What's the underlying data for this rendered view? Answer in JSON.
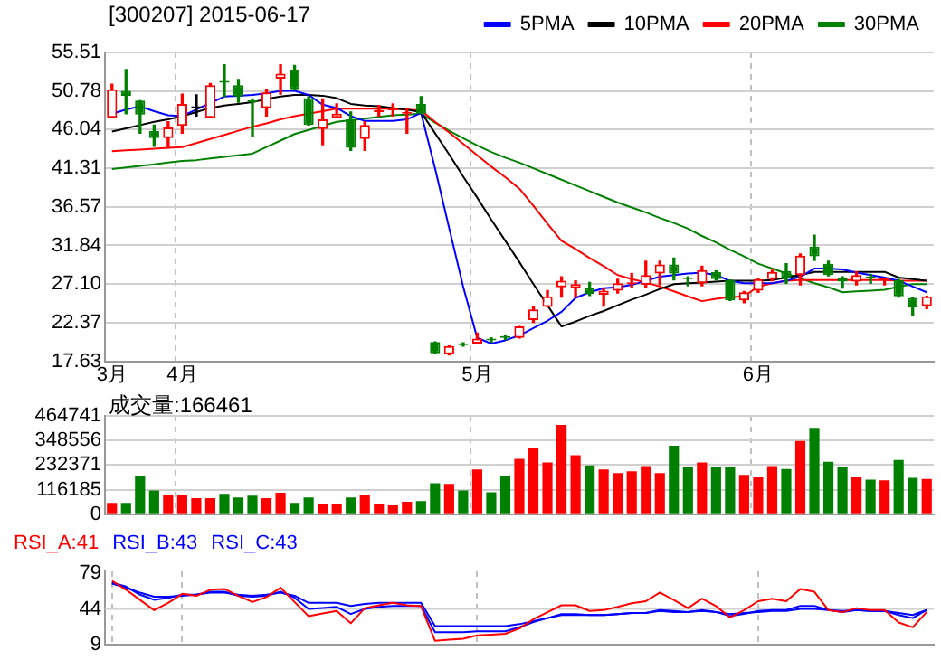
{
  "chart_data": [
    {
      "type": "candlestick",
      "title": "[300207] 2015-06-17",
      "legend": "top right",
      "grid": true,
      "categories": [
        "3月",
        null,
        null,
        null,
        null,
        "4月",
        null,
        null,
        null,
        null,
        null,
        null,
        null,
        null,
        null,
        null,
        null,
        null,
        null,
        null,
        null,
        null,
        null,
        null,
        null,
        null,
        "5月",
        null,
        null,
        null,
        null,
        null,
        null,
        null,
        null,
        null,
        null,
        null,
        null,
        null,
        null,
        null,
        null,
        null,
        null,
        null,
        "6月",
        null,
        null,
        null,
        null,
        null,
        null,
        null,
        null,
        null,
        null,
        null,
        null
      ],
      "ohlc": [
        [
          47.5,
          51.6,
          47.5,
          51.0
        ],
        [
          50.8,
          53.4,
          48.0,
          50.2
        ],
        [
          49.6,
          49.6,
          45.6,
          47.9
        ],
        [
          45.9,
          46.6,
          44.0,
          45.0
        ],
        [
          45.0,
          47.0,
          43.8,
          46.3
        ],
        [
          46.5,
          50.4,
          45.6,
          49.2
        ],
        [
          48.7,
          50.3,
          47.7,
          48.7
        ],
        [
          47.5,
          51.7,
          47.5,
          51.5
        ],
        [
          51.9,
          54.0,
          50.1,
          51.8
        ],
        [
          51.5,
          52.2,
          49.4,
          50.1
        ],
        [
          49.5,
          49.8,
          45.2,
          49.4
        ],
        [
          48.7,
          51.0,
          47.7,
          50.6
        ],
        [
          52.3,
          54.0,
          50.4,
          52.9
        ],
        [
          53.4,
          53.9,
          51.0,
          51.0
        ],
        [
          49.9,
          50.1,
          46.6,
          46.6
        ],
        [
          46.1,
          49.8,
          44.2,
          47.3
        ],
        [
          47.5,
          49.2,
          47.5,
          48.0
        ],
        [
          47.3,
          48.2,
          43.5,
          43.8
        ],
        [
          44.9,
          47.0,
          43.5,
          46.6
        ],
        [
          48.2,
          49.0,
          47.7,
          48.3
        ],
        [
          48.4,
          49.2,
          47.7,
          48.5
        ],
        [
          48.0,
          48.6,
          45.6,
          48.1
        ],
        [
          49.2,
          50.1,
          48.0,
          48.0
        ],
        [
          20.0,
          20.0,
          18.6,
          18.6
        ],
        [
          18.5,
          19.5,
          18.4,
          19.5
        ],
        [
          19.7,
          19.9,
          19.5,
          19.6
        ],
        [
          19.8,
          21.1,
          19.8,
          20.4
        ],
        [
          20.3,
          20.5,
          20.0,
          20.2
        ],
        [
          20.6,
          20.8,
          20.3,
          20.5
        ],
        [
          20.5,
          21.9,
          20.5,
          21.9
        ],
        [
          22.7,
          24.4,
          22.4,
          24.0
        ],
        [
          24.3,
          26.3,
          24.3,
          25.6
        ],
        [
          26.7,
          28.0,
          25.5,
          27.5
        ],
        [
          26.6,
          27.5,
          25.5,
          27.1
        ],
        [
          26.6,
          27.3,
          25.7,
          25.9
        ],
        [
          25.8,
          26.5,
          24.4,
          26.3
        ],
        [
          26.3,
          27.7,
          26.0,
          27.2
        ],
        [
          27.1,
          28.4,
          26.7,
          27.2
        ],
        [
          27.0,
          29.9,
          26.7,
          28.2
        ],
        [
          28.4,
          29.9,
          27.0,
          29.5
        ],
        [
          29.5,
          30.3,
          27.6,
          28.4
        ],
        [
          27.8,
          28.0,
          26.9,
          27.7
        ],
        [
          27.2,
          29.3,
          26.9,
          28.8
        ],
        [
          28.6,
          28.7,
          27.6,
          27.7
        ],
        [
          27.6,
          27.6,
          25.1,
          25.1
        ],
        [
          25.1,
          26.2,
          24.8,
          26.1
        ],
        [
          26.3,
          27.8,
          26.1,
          27.7
        ],
        [
          27.7,
          28.8,
          27.5,
          28.6
        ],
        [
          28.7,
          29.6,
          27.2,
          27.9
        ],
        [
          28.2,
          30.8,
          27.0,
          30.6
        ],
        [
          31.7,
          33.1,
          30.0,
          30.5
        ],
        [
          29.6,
          29.9,
          28.1,
          28.2
        ],
        [
          27.8,
          28.0,
          26.6,
          27.4
        ],
        [
          27.4,
          28.6,
          27.0,
          28.2
        ],
        [
          27.9,
          28.3,
          27.2,
          27.8
        ],
        [
          27.6,
          27.8,
          27.0,
          27.7
        ],
        [
          27.6,
          27.7,
          25.5,
          25.6
        ],
        [
          25.4,
          25.4,
          23.3,
          24.2
        ],
        [
          24.4,
          25.6,
          24.1,
          25.6
        ]
      ],
      "colors": [
        "#ff0000",
        "#008000",
        "#008000",
        "#008000",
        "#ff0000",
        "#ff0000",
        "#000000",
        "#ff0000",
        "#008000",
        "#008000",
        "#008000",
        "#ff0000",
        "#ff0000",
        "#008000",
        "#008000",
        "#ff0000",
        "#ff0000",
        "#008000",
        "#ff0000",
        "#ff0000",
        "#ff0000",
        "#ff0000",
        "#008000",
        "#008000",
        "#ff0000",
        "#008000",
        "#ff0000",
        "#008000",
        "#008000",
        "#ff0000",
        "#ff0000",
        "#ff0000",
        "#ff0000",
        "#ff0000",
        "#008000",
        "#ff0000",
        "#ff0000",
        "#ff0000",
        "#ff0000",
        "#ff0000",
        "#008000",
        "#008000",
        "#ff0000",
        "#008000",
        "#008000",
        "#ff0000",
        "#ff0000",
        "#ff0000",
        "#008000",
        "#ff0000",
        "#008000",
        "#008000",
        "#008000",
        "#ff0000",
        "#008000",
        "#ff0000",
        "#008000",
        "#008000",
        "#ff0000"
      ],
      "series": [
        {
          "type": "line",
          "name": "5PMA",
          "color": "#0000ff",
          "values": [
            48.0,
            48.5,
            48.9,
            48.3,
            47.8,
            47.7,
            48.5,
            49.3,
            50.1,
            50.2,
            50.3,
            50.5,
            50.8,
            50.8,
            50.3,
            49.1,
            48.7,
            47.7,
            47.1,
            47.1,
            47.1,
            47.3,
            48.1,
            41.3,
            34.0,
            26.8,
            20.5,
            19.8,
            20.2,
            20.8,
            21.7,
            22.6,
            23.7,
            25.4,
            26.1,
            26.6,
            26.7,
            27.0,
            27.5,
            28.0,
            28.2,
            28.4,
            28.5,
            28.2,
            27.5,
            27.2,
            27.2,
            27.2,
            27.5,
            28.0,
            29.0,
            29.0,
            28.9,
            28.5,
            28.2,
            27.9,
            27.5,
            26.8,
            26.1
          ]
        },
        {
          "type": "line",
          "name": "10PMA",
          "color": "#000000",
          "values": [
            45.8,
            46.2,
            46.6,
            47.0,
            47.3,
            47.7,
            48.2,
            48.7,
            49.0,
            49.2,
            49.4,
            49.8,
            50.1,
            50.3,
            50.3,
            50.2,
            49.9,
            49.2,
            49.0,
            48.9,
            48.7,
            48.5,
            48.2,
            45.6,
            43.0,
            40.3,
            37.7,
            35.0,
            32.4,
            29.8,
            27.1,
            24.5,
            21.9,
            22.5,
            23.2,
            23.8,
            24.5,
            25.2,
            25.8,
            26.5,
            27.1,
            27.2,
            27.3,
            27.4,
            27.5,
            27.5,
            27.5,
            27.6,
            27.9,
            28.2,
            28.6,
            28.6,
            28.6,
            28.6,
            28.6,
            28.6,
            27.9,
            27.7,
            27.5
          ]
        },
        {
          "type": "line",
          "name": "20PMA",
          "color": "#ff0000",
          "values": [
            43.4,
            43.5,
            43.6,
            43.7,
            43.8,
            43.9,
            44.4,
            44.9,
            45.4,
            45.9,
            46.4,
            46.8,
            47.3,
            47.7,
            48.0,
            48.3,
            48.6,
            48.6,
            48.6,
            48.6,
            48.6,
            48.5,
            48.4,
            47.0,
            45.7,
            44.3,
            42.9,
            41.5,
            40.2,
            38.8,
            36.7,
            34.5,
            32.4,
            31.4,
            30.3,
            29.3,
            28.2,
            27.7,
            27.3,
            26.8,
            26.2,
            25.6,
            25.0,
            25.3,
            25.5,
            25.6,
            26.8,
            27.2,
            27.5,
            27.6,
            27.6,
            27.6,
            27.6,
            27.6,
            27.6,
            27.6,
            27.5,
            27.5,
            27.5
          ]
        },
        {
          "type": "line",
          "name": "30PMA",
          "color": "#008000",
          "values": [
            41.2,
            41.4,
            41.6,
            41.8,
            42.0,
            42.2,
            42.3,
            42.5,
            42.7,
            42.9,
            43.1,
            43.9,
            44.7,
            45.5,
            46.0,
            46.5,
            47.0,
            47.2,
            47.4,
            47.6,
            47.8,
            47.9,
            48.0,
            46.9,
            45.9,
            45.0,
            44.1,
            43.3,
            42.6,
            42.0,
            41.3,
            40.6,
            39.9,
            39.2,
            38.5,
            37.8,
            37.1,
            36.5,
            35.9,
            35.2,
            34.6,
            33.9,
            33.0,
            32.2,
            31.3,
            30.5,
            29.6,
            29.0,
            28.4,
            27.8,
            27.2,
            26.7,
            26.1,
            26.2,
            26.3,
            26.4,
            26.8,
            27.1,
            27.1
          ]
        }
      ],
      "ylim": [
        17.63,
        55.51
      ],
      "yticks": [
        17.63,
        22.37,
        {
          "value": 27.1,
          "label": "27.10"
        },
        31.84,
        36.57,
        41.31,
        46.04,
        50.78,
        55.51
      ]
    },
    {
      "type": "bar",
      "title": "成交量:166461",
      "grid": true,
      "tick_labels": "y",
      "categories": [
        null,
        null,
        null,
        null,
        null,
        null,
        null,
        null,
        null,
        null,
        null,
        null,
        null,
        null,
        null,
        null,
        null,
        null,
        null,
        null,
        null,
        null,
        null,
        null,
        null,
        null,
        null,
        null,
        null,
        null,
        null,
        null,
        null,
        null,
        null,
        null,
        null,
        null,
        null,
        null,
        null,
        null,
        null,
        null,
        null,
        null,
        null,
        null,
        null,
        null,
        null,
        null,
        null,
        null,
        null,
        null,
        null,
        null,
        null
      ],
      "values": [
        53500,
        53500,
        180300,
        112700,
        93000,
        93000,
        76000,
        76000,
        95800,
        78900,
        87300,
        76000,
        101400,
        53500,
        78900,
        50700,
        50700,
        78900,
        93000,
        50700,
        42300,
        59200,
        62000,
        146500,
        143700,
        112700,
        211300,
        104200,
        180300,
        262000,
        312700,
        245100,
        422500,
        278900,
        231000,
        211300,
        194400,
        202800,
        228200,
        194400,
        323900,
        222500,
        245100,
        222500,
        222500,
        185900,
        174600,
        228200,
        214100,
        346500,
        408500,
        247900,
        222500,
        174600,
        163400,
        160600,
        256300,
        171800,
        166461
      ],
      "colors": [
        "#ff0000",
        "#008000",
        "#008000",
        "#008000",
        "#ff0000",
        "#ff0000",
        "#ff0000",
        "#ff0000",
        "#008000",
        "#008000",
        "#008000",
        "#ff0000",
        "#ff0000",
        "#008000",
        "#008000",
        "#ff0000",
        "#ff0000",
        "#008000",
        "#ff0000",
        "#ff0000",
        "#ff0000",
        "#ff0000",
        "#008000",
        "#008000",
        "#ff0000",
        "#008000",
        "#ff0000",
        "#008000",
        "#008000",
        "#ff0000",
        "#ff0000",
        "#ff0000",
        "#ff0000",
        "#ff0000",
        "#008000",
        "#ff0000",
        "#ff0000",
        "#ff0000",
        "#ff0000",
        "#ff0000",
        "#008000",
        "#008000",
        "#ff0000",
        "#008000",
        "#008000",
        "#ff0000",
        "#ff0000",
        "#ff0000",
        "#008000",
        "#ff0000",
        "#008000",
        "#008000",
        "#008000",
        "#ff0000",
        "#008000",
        "#ff0000",
        "#008000",
        "#008000",
        "#ff0000"
      ],
      "ylim": [
        0,
        464741
      ],
      "yticks": [
        0,
        116185,
        232371,
        348556,
        464741
      ]
    },
    {
      "type": "line",
      "legend": "top left",
      "grid": "x",
      "tick_labels": "y",
      "ref_lines": [
        {
          "axis": "y",
          "value": 44,
          "color": "#d0d0d0"
        }
      ],
      "categories": [
        null,
        null,
        null,
        null,
        null,
        null,
        null,
        null,
        null,
        null,
        null,
        null,
        null,
        null,
        null,
        null,
        null,
        null,
        null,
        null,
        null,
        null,
        null,
        null,
        null,
        null,
        null,
        null,
        null,
        null,
        null,
        null,
        null,
        null,
        null,
        null,
        null,
        null,
        null,
        null,
        null,
        null,
        null,
        null,
        null,
        null,
        null,
        null,
        null,
        null,
        null,
        null,
        null,
        null,
        null,
        null,
        null,
        null,
        null
      ],
      "series": [
        {
          "name": "RSI_A:41",
          "color": "#ff0000",
          "values": [
            71.8,
            62.9,
            52.8,
            42.8,
            50.0,
            58.9,
            56.9,
            62.9,
            63.7,
            56.9,
            50.8,
            55.7,
            64.9,
            50.8,
            36.8,
            39.6,
            42.0,
            29.9,
            44.8,
            47.6,
            50.0,
            47.6,
            46.8,
            12.6,
            13.8,
            14.6,
            17.9,
            18.7,
            19.5,
            24.7,
            33.9,
            40.8,
            47.6,
            47.6,
            42.0,
            42.8,
            46.0,
            49.6,
            51.6,
            60.1,
            52.8,
            44.8,
            54.1,
            46.8,
            35.6,
            42.8,
            51.6,
            54.1,
            51.6,
            63.7,
            60.9,
            42.8,
            40.8,
            44.8,
            42.8,
            42.8,
            30.7,
            25.9,
            41
          ]
        },
        {
          "name": "RSI_B:43",
          "color": "#0000ff",
          "values": [
            70,
            66,
            58,
            53,
            55,
            58,
            58,
            61,
            61,
            57,
            56,
            57,
            61,
            55,
            44,
            45,
            46,
            39,
            44,
            46,
            47,
            47,
            47,
            21,
            21,
            21,
            22,
            22,
            22,
            26,
            31,
            35,
            39,
            39,
            38,
            38,
            39,
            40,
            40,
            43,
            42,
            41,
            43,
            41,
            37,
            39,
            42,
            43,
            43,
            47,
            47,
            43,
            41,
            43,
            42,
            42,
            38,
            35,
            43
          ]
        },
        {
          "name": "RSI_C:43",
          "color": "#0000ff",
          "values": [
            69,
            65,
            60,
            56,
            56,
            57,
            58,
            60,
            60,
            58,
            57,
            58,
            60,
            57,
            50,
            50,
            50,
            47,
            49,
            50,
            50,
            50,
            50,
            27,
            27,
            27,
            27,
            27,
            27,
            29,
            32,
            35,
            38,
            38,
            38,
            38,
            39,
            40,
            40,
            42,
            41,
            41,
            42,
            41,
            39,
            40,
            41,
            42,
            42,
            44,
            44,
            43,
            42,
            43,
            42,
            42,
            40,
            38,
            43
          ]
        }
      ],
      "ylim": [
        9,
        81
      ],
      "yticks": [
        9,
        44,
        79
      ]
    }
  ]
}
